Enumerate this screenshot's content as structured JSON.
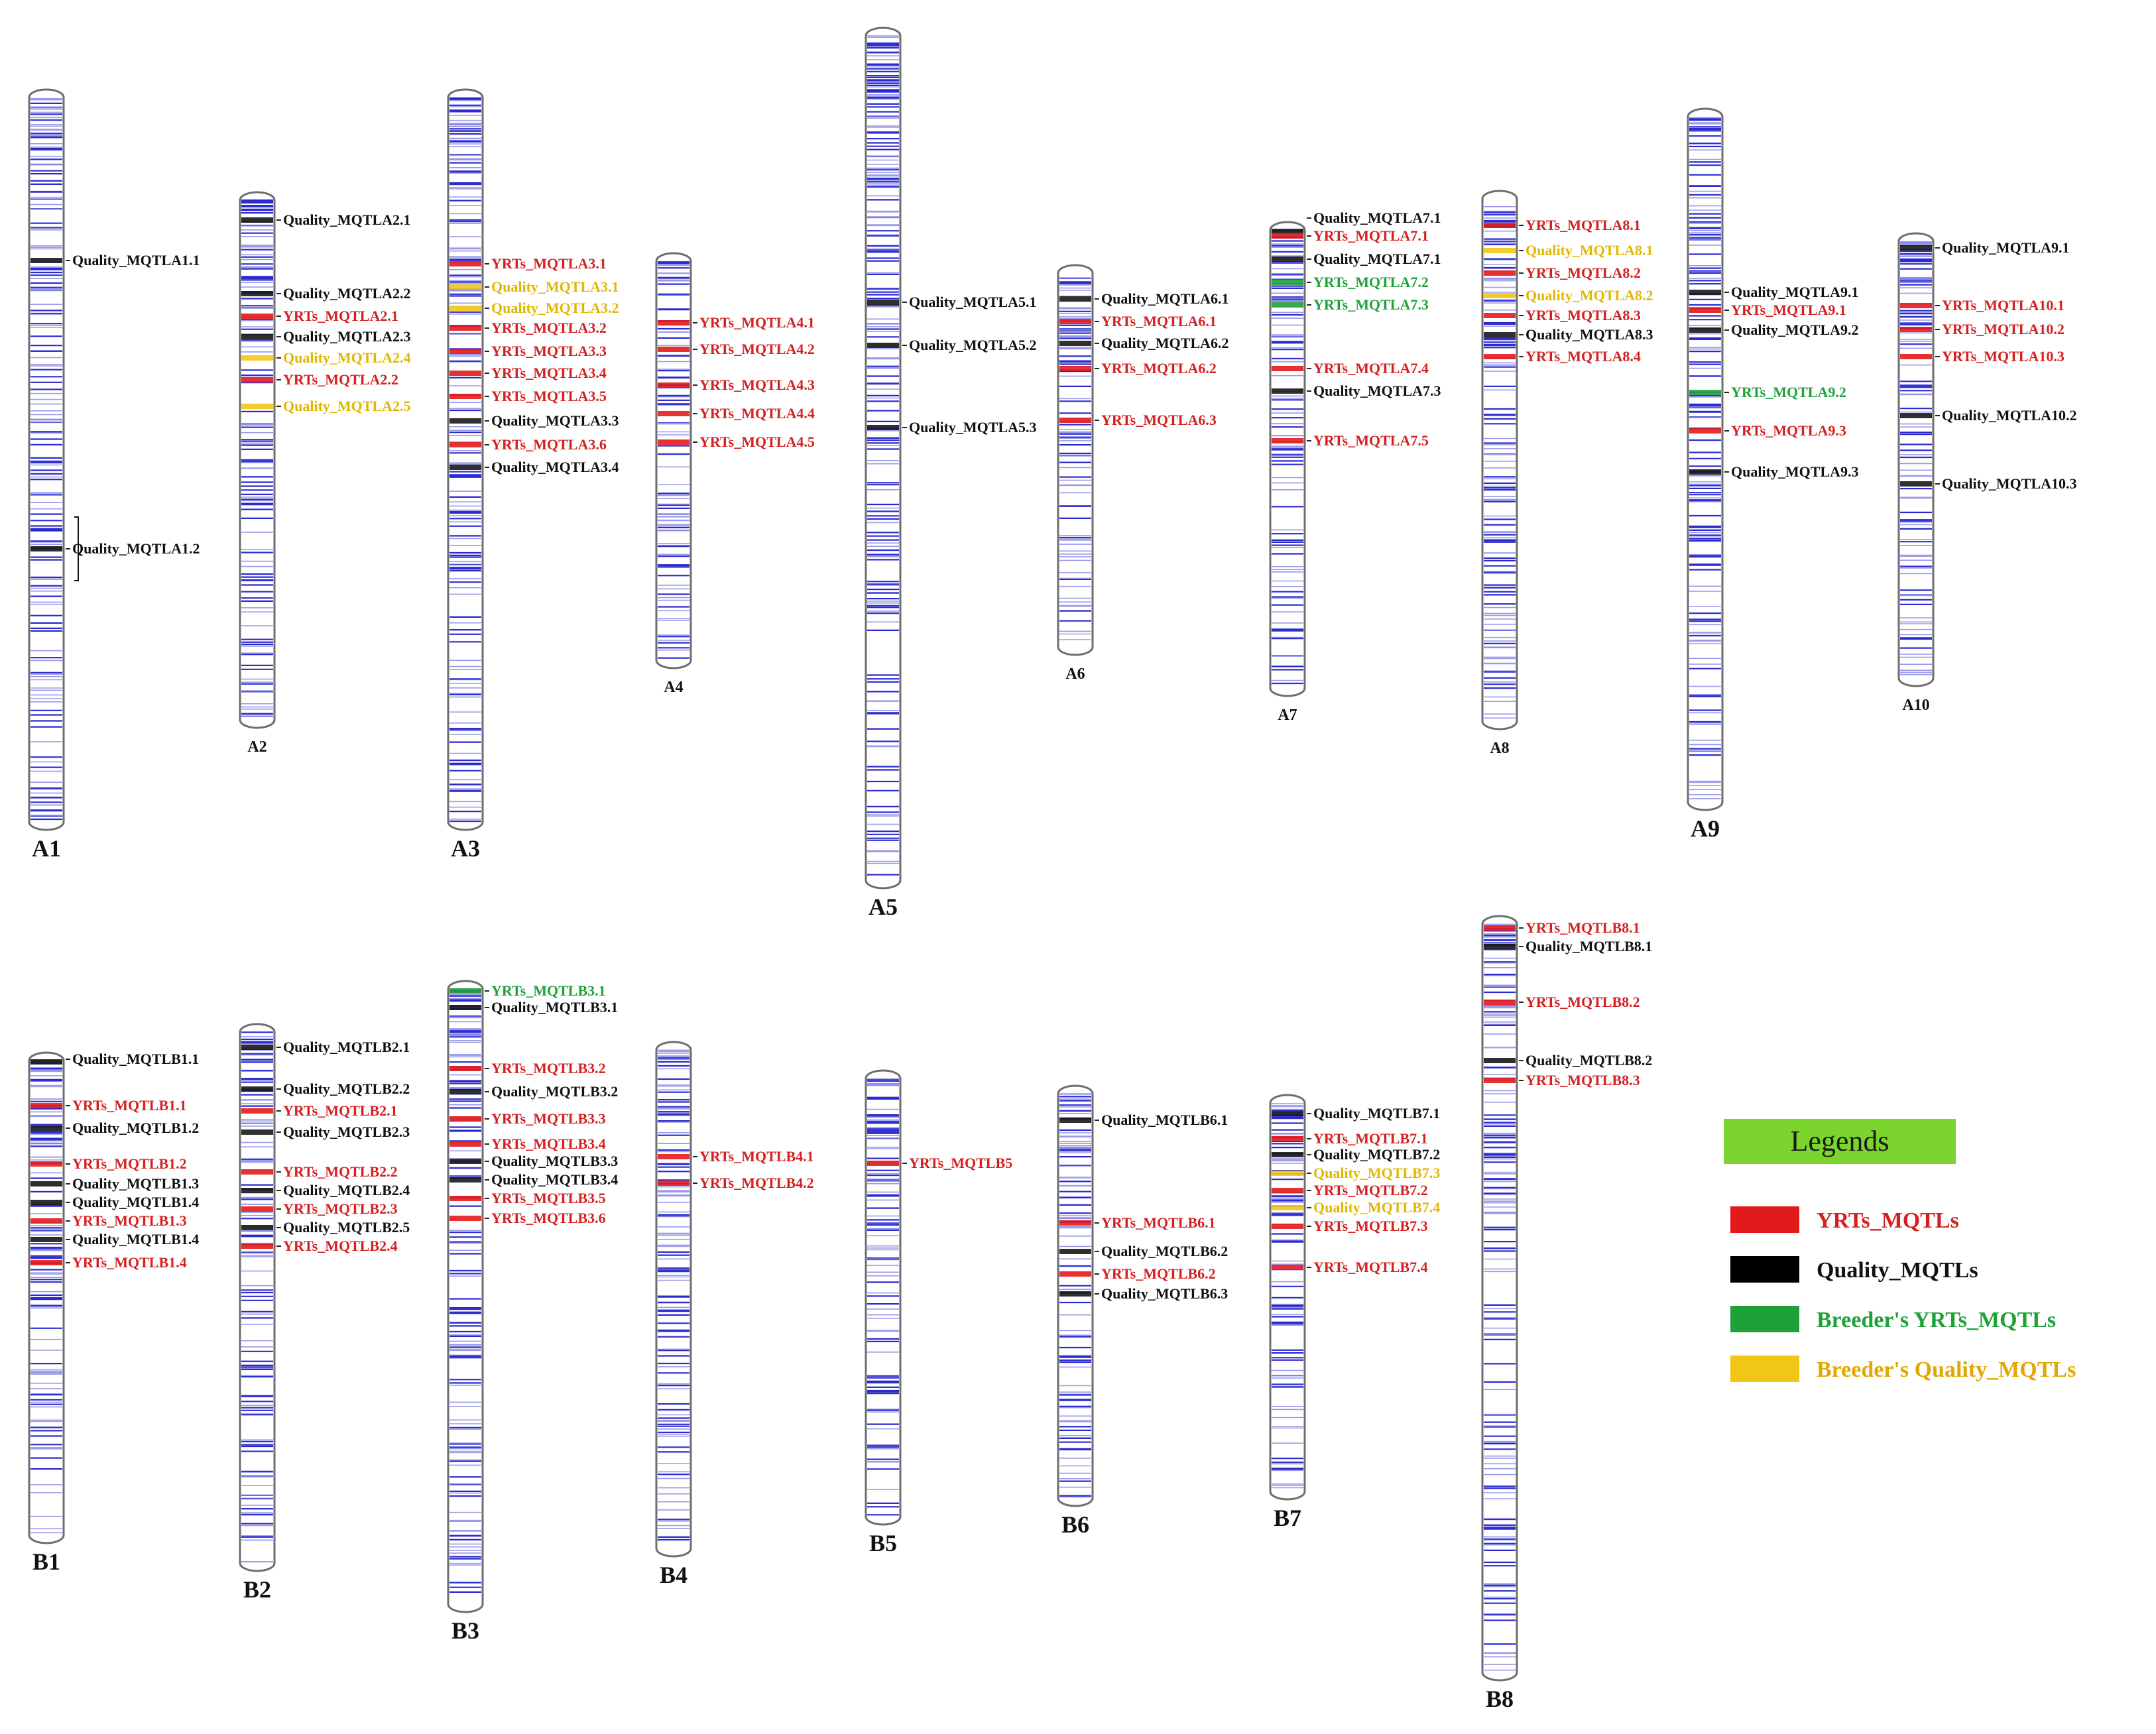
{
  "colors": {
    "marker": "#2b2bd0",
    "marker_light": "#9a9ae8",
    "yrt": "#d42020",
    "quality": "#111111",
    "breeder_yrt": "#1fa13a",
    "breeder_quality": "#e0b800"
  },
  "legend": {
    "title": "Legends",
    "items": [
      {
        "label": "YRTs_MQTLs",
        "color": "#e31a1c",
        "text_color": "#d42020"
      },
      {
        "label": "Quality_MQTLs",
        "color": "#000000",
        "text_color": "#111111"
      },
      {
        "label": "Breeder's YRTs_MQTLs",
        "color": "#1fa13a",
        "text_color": "#1fa13a"
      },
      {
        "label": "Breeder's Quality_MQTLs",
        "color": "#f2c617",
        "text_color": "#e0a800"
      }
    ]
  },
  "chromosomes": [
    {
      "name": "A1",
      "qtls": [
        {
          "label": "Quality_MQTLA1.1",
          "kind": "quality"
        },
        {
          "label": "Quality_MQTLA1.2",
          "kind": "quality"
        }
      ]
    },
    {
      "name": "A2",
      "qtls": [
        {
          "label": "Quality_MQTLA2.1",
          "kind": "quality"
        },
        {
          "label": "Quality_MQTLA2.2",
          "kind": "quality"
        },
        {
          "label": "YRTs_MQTLA2.1",
          "kind": "yrt"
        },
        {
          "label": "Quality_MQTLA2.3",
          "kind": "quality"
        },
        {
          "label": "Quality_MQTLA2.4",
          "kind": "breeder_quality"
        },
        {
          "label": "YRTs_MQTLA2.2",
          "kind": "yrt"
        },
        {
          "label": "Quality_MQTLA2.5",
          "kind": "breeder_quality"
        }
      ]
    },
    {
      "name": "A3",
      "qtls": [
        {
          "label": "YRTs_MQTLA3.1",
          "kind": "yrt"
        },
        {
          "label": "Quality_MQTLA3.1",
          "kind": "breeder_quality"
        },
        {
          "label": "Quality_MQTLA3.2",
          "kind": "breeder_quality"
        },
        {
          "label": "YRTs_MQTLA3.2",
          "kind": "yrt"
        },
        {
          "label": "YRTs_MQTLA3.3",
          "kind": "yrt"
        },
        {
          "label": "YRTs_MQTLA3.4",
          "kind": "yrt"
        },
        {
          "label": "YRTs_MQTLA3.5",
          "kind": "yrt"
        },
        {
          "label": "Quality_MQTLA3.3",
          "kind": "quality"
        },
        {
          "label": "YRTs_MQTLA3.6",
          "kind": "yrt"
        },
        {
          "label": "Quality_MQTLA3.4",
          "kind": "quality"
        }
      ]
    },
    {
      "name": "A4",
      "qtls": [
        {
          "label": "YRTs_MQTLA4.1",
          "kind": "yrt"
        },
        {
          "label": "YRTs_MQTLA4.2",
          "kind": "yrt"
        },
        {
          "label": "YRTs_MQTLA4.3",
          "kind": "yrt"
        },
        {
          "label": "YRTs_MQTLA4.4",
          "kind": "yrt"
        },
        {
          "label": "YRTs_MQTLA4.5",
          "kind": "yrt"
        }
      ]
    },
    {
      "name": "A5",
      "qtls": [
        {
          "label": "Quality_MQTLA5.1",
          "kind": "quality"
        },
        {
          "label": "Quality_MQTLA5.2",
          "kind": "quality"
        },
        {
          "label": "Quality_MQTLA5.3",
          "kind": "quality"
        }
      ]
    },
    {
      "name": "A6",
      "qtls": [
        {
          "label": "Quality_MQTLA6.1",
          "kind": "quality"
        },
        {
          "label": "YRTs_MQTLA6.1",
          "kind": "yrt"
        },
        {
          "label": "Quality_MQTLA6.2",
          "kind": "quality"
        },
        {
          "label": "YRTs_MQTLA6.2",
          "kind": "yrt"
        },
        {
          "label": "YRTs_MQTLA6.3",
          "kind": "yrt"
        }
      ]
    },
    {
      "name": "A7",
      "qtls": [
        {
          "label": "Quality_MQTLA7.1",
          "kind": "quality"
        },
        {
          "label": "YRTs_MQTLA7.1",
          "kind": "yrt"
        },
        {
          "label": "Quality_MQTLA7.1",
          "kind": "quality"
        },
        {
          "label": "YRTs_MQTLA7.2",
          "kind": "breeder_yrt"
        },
        {
          "label": "YRTs_MQTLA7.3",
          "kind": "breeder_yrt"
        },
        {
          "label": "YRTs_MQTLA7.4",
          "kind": "yrt"
        },
        {
          "label": "Quality_MQTLA7.3",
          "kind": "quality"
        },
        {
          "label": "YRTs_MQTLA7.5",
          "kind": "yrt"
        }
      ]
    },
    {
      "name": "A8",
      "qtls": [
        {
          "label": "YRTs_MQTLA8.1",
          "kind": "yrt"
        },
        {
          "label": "Quality_MQTLA8.1",
          "kind": "breeder_quality"
        },
        {
          "label": "YRTs_MQTLA8.2",
          "kind": "yrt"
        },
        {
          "label": "Quality_MQTLA8.2",
          "kind": "breeder_quality"
        },
        {
          "label": "YRTs_MQTLA8.3",
          "kind": "yrt"
        },
        {
          "label": "Quality_MQTLA8.3",
          "kind": "quality"
        },
        {
          "label": "YRTs_MQTLA8.4",
          "kind": "yrt"
        }
      ]
    },
    {
      "name": "A9",
      "qtls": [
        {
          "label": "Quality_MQTLA9.1",
          "kind": "quality"
        },
        {
          "label": "YRTs_MQTLA9.1",
          "kind": "yrt"
        },
        {
          "label": "Quality_MQTLA9.2",
          "kind": "quality"
        },
        {
          "label": "YRTs_MQTLA9.2",
          "kind": "breeder_yrt"
        },
        {
          "label": "YRTs_MQTLA9.3",
          "kind": "yrt"
        },
        {
          "label": "Quality_MQTLA9.3",
          "kind": "quality"
        }
      ]
    },
    {
      "name": "A10",
      "qtls": [
        {
          "label": "Quality_MQTLA9.1",
          "kind": "quality"
        },
        {
          "label": "YRTs_MQTLA10.1",
          "kind": "yrt"
        },
        {
          "label": "YRTs_MQTLA10.2",
          "kind": "yrt"
        },
        {
          "label": "YRTs_MQTLA10.3",
          "kind": "yrt"
        },
        {
          "label": "Quality_MQTLA10.2",
          "kind": "quality"
        },
        {
          "label": "Quality_MQTLA10.3",
          "kind": "quality"
        }
      ]
    },
    {
      "name": "B1",
      "qtls": [
        {
          "label": "Quality_MQTLB1.1",
          "kind": "quality"
        },
        {
          "label": "YRTs_MQTLB1.1",
          "kind": "yrt"
        },
        {
          "label": "Quality_MQTLB1.2",
          "kind": "quality"
        },
        {
          "label": "YRTs_MQTLB1.2",
          "kind": "yrt"
        },
        {
          "label": "Quality_MQTLB1.3",
          "kind": "quality"
        },
        {
          "label": "Quality_MQTLB1.4",
          "kind": "quality"
        },
        {
          "label": "YRTs_MQTLB1.3",
          "kind": "yrt"
        },
        {
          "label": "Quality_MQTLB1.4",
          "kind": "quality"
        },
        {
          "label": "YRTs_MQTLB1.4",
          "kind": "yrt"
        }
      ]
    },
    {
      "name": "B2",
      "qtls": [
        {
          "label": "Quality_MQTLB2.1",
          "kind": "quality"
        },
        {
          "label": "Quality_MQTLB2.2",
          "kind": "quality"
        },
        {
          "label": "YRTs_MQTLB2.1",
          "kind": "yrt"
        },
        {
          "label": "Quality_MQTLB2.3",
          "kind": "quality"
        },
        {
          "label": "YRTs_MQTLB2.2",
          "kind": "yrt"
        },
        {
          "label": "Quality_MQTLB2.4",
          "kind": "quality"
        },
        {
          "label": "YRTs_MQTLB2.3",
          "kind": "yrt"
        },
        {
          "label": "Quality_MQTLB2.5",
          "kind": "quality"
        },
        {
          "label": "YRTs_MQTLB2.4",
          "kind": "yrt"
        }
      ]
    },
    {
      "name": "B3",
      "qtls": [
        {
          "label": "YRTs_MQTLB3.1",
          "kind": "breeder_yrt"
        },
        {
          "label": "Quality_MQTLB3.1",
          "kind": "quality"
        },
        {
          "label": "YRTs_MQTLB3.2",
          "kind": "yrt"
        },
        {
          "label": "Quality_MQTLB3.2",
          "kind": "quality"
        },
        {
          "label": "YRTs_MQTLB3.3",
          "kind": "yrt"
        },
        {
          "label": "YRTs_MQTLB3.4",
          "kind": "yrt"
        },
        {
          "label": "Quality_MQTLB3.3",
          "kind": "quality"
        },
        {
          "label": "Quality_MQTLB3.4",
          "kind": "quality"
        },
        {
          "label": "YRTs_MQTLB3.5",
          "kind": "yrt"
        },
        {
          "label": "YRTs_MQTLB3.6",
          "kind": "yrt"
        }
      ]
    },
    {
      "name": "B4",
      "qtls": [
        {
          "label": "YRTs_MQTLB4.1",
          "kind": "yrt"
        },
        {
          "label": "YRTs_MQTLB4.2",
          "kind": "yrt"
        }
      ]
    },
    {
      "name": "B5",
      "qtls": [
        {
          "label": "YRTs_MQTLB5",
          "kind": "yrt"
        }
      ]
    },
    {
      "name": "B6",
      "qtls": [
        {
          "label": "Quality_MQTLB6.1",
          "kind": "quality"
        },
        {
          "label": "YRTs_MQTLB6.1",
          "kind": "yrt"
        },
        {
          "label": "Quality_MQTLB6.2",
          "kind": "quality"
        },
        {
          "label": "YRTs_MQTLB6.2",
          "kind": "yrt"
        },
        {
          "label": "Quality_MQTLB6.3",
          "kind": "quality"
        }
      ]
    },
    {
      "name": "B7",
      "qtls": [
        {
          "label": "Quality_MQTLB7.1",
          "kind": "quality"
        },
        {
          "label": "YRTs_MQTLB7.1",
          "kind": "yrt"
        },
        {
          "label": "Quality_MQTLB7.2",
          "kind": "quality"
        },
        {
          "label": "Quality_MQTLB7.3",
          "kind": "breeder_quality"
        },
        {
          "label": "YRTs_MQTLB7.2",
          "kind": "yrt"
        },
        {
          "label": "Quality_MQTLB7.4",
          "kind": "breeder_quality"
        },
        {
          "label": "YRTs_MQTLB7.3",
          "kind": "yrt"
        },
        {
          "label": "YRTs_MQTLB7.4",
          "kind": "yrt"
        }
      ]
    },
    {
      "name": "B8",
      "qtls": [
        {
          "label": "YRTs_MQTLB8.1",
          "kind": "yrt"
        },
        {
          "label": "Quality_MQTLB8.1",
          "kind": "quality"
        },
        {
          "label": "YRTs_MQTLB8.2",
          "kind": "yrt"
        },
        {
          "label": "Quality_MQTLB8.2",
          "kind": "quality"
        },
        {
          "label": "YRTs_MQTLB8.3",
          "kind": "yrt"
        }
      ]
    }
  ]
}
